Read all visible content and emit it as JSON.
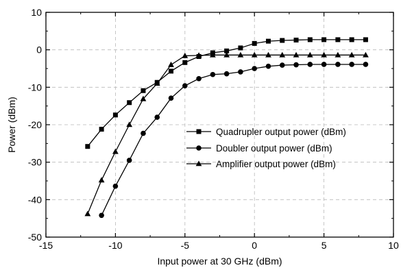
{
  "chart_data": {
    "type": "line",
    "title": "",
    "xlabel": "Input power at 30 GHz (dBm)",
    "ylabel": "Power (dBm)",
    "xlim": [
      -15,
      10
    ],
    "ylim": [
      -50,
      10
    ],
    "xticks": [
      -15,
      -10,
      -5,
      0,
      5,
      10
    ],
    "yticks": [
      -50,
      -40,
      -30,
      -20,
      -10,
      0,
      10
    ],
    "xtick_labels": [
      "-15",
      "-10",
      "-5",
      "0",
      "5",
      "10"
    ],
    "ytick_labels": [
      "-50",
      "-40",
      "-30",
      "-20",
      "-10",
      "0",
      "10"
    ],
    "grid": true,
    "grid_style": "dashed",
    "legend_position": "right-center",
    "series": [
      {
        "name": "Quadrupler output power (dBm)",
        "marker": "square",
        "x": [
          -12,
          -11,
          -10,
          -9,
          -8,
          -7,
          -6,
          -5,
          -4,
          -3,
          -2,
          -1,
          0,
          1,
          2,
          3,
          4,
          5,
          6,
          7,
          8
        ],
        "y": [
          -25.8,
          -21.2,
          -17.4,
          -14.1,
          -10.9,
          -8.7,
          -5.7,
          -3.4,
          -1.8,
          -0.8,
          -0.3,
          0.5,
          1.7,
          2.3,
          2.5,
          2.6,
          2.7,
          2.7,
          2.7,
          2.7,
          2.7
        ]
      },
      {
        "name": "Doubler output power (dBm)",
        "marker": "circle",
        "x": [
          -11,
          -10,
          -9,
          -8,
          -7,
          -6,
          -5,
          -4,
          -3,
          -2,
          -1,
          0,
          1,
          2,
          3,
          4,
          5,
          6,
          7,
          8
        ],
        "y": [
          -44.2,
          -36.4,
          -29.5,
          -22.3,
          -18.0,
          -12.9,
          -9.6,
          -7.7,
          -6.6,
          -6.4,
          -5.9,
          -5.0,
          -4.4,
          -4.1,
          -4.0,
          -3.9,
          -3.9,
          -3.9,
          -3.9,
          -3.9
        ]
      },
      {
        "name": "Amplifier output power (dBm)",
        "marker": "triangle",
        "x": [
          -12,
          -11,
          -10,
          -9,
          -8,
          -7,
          -6,
          -5,
          -4,
          -3,
          -2,
          -1,
          0,
          1,
          2,
          3,
          4,
          5,
          6,
          7,
          8
        ],
        "y": [
          -43.8,
          -34.8,
          -27.2,
          -20.0,
          -13.1,
          -9.0,
          -4.0,
          -1.6,
          -1.5,
          -1.4,
          -1.4,
          -1.4,
          -1.4,
          -1.4,
          -1.4,
          -1.4,
          -1.4,
          -1.4,
          -1.4,
          -1.4,
          -1.4
        ]
      }
    ]
  }
}
